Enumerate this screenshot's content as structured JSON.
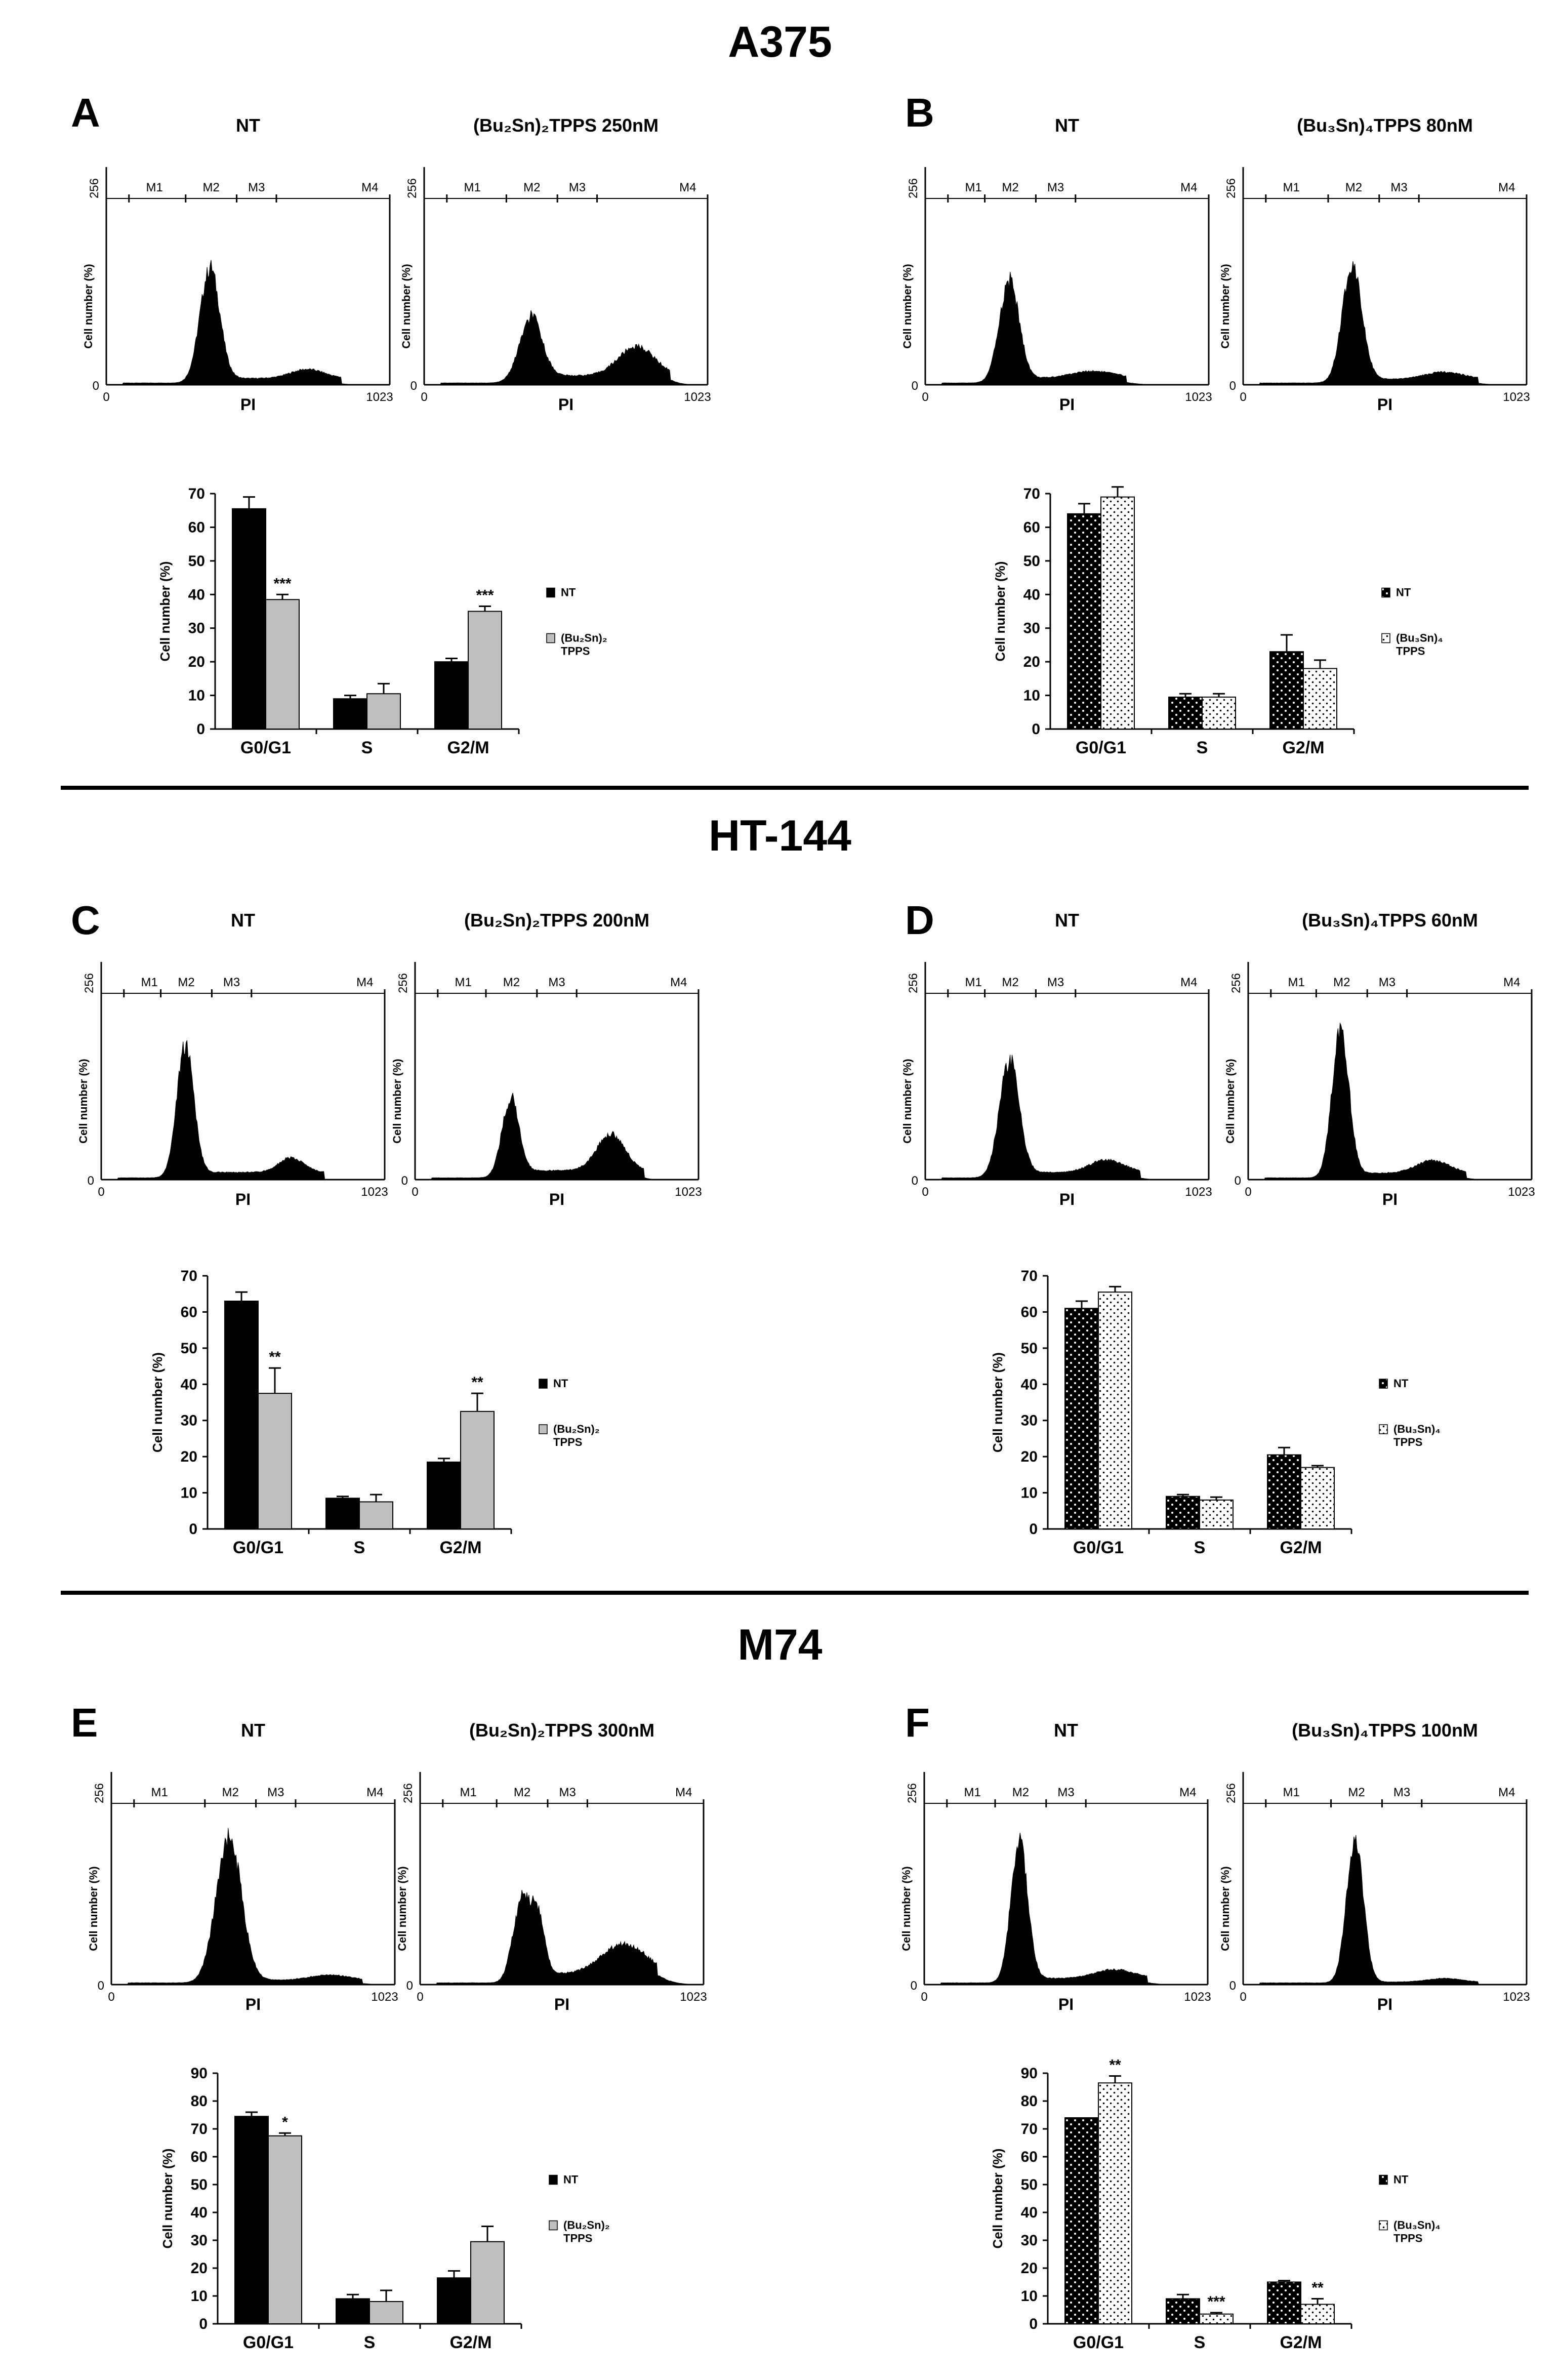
{
  "colors": {
    "nt_fill": "#000000",
    "treated_gray": "#bfbfbf",
    "pattern_bg_dark": "#000000",
    "pattern_bg_light": "#ffffff",
    "divider": "#000000"
  },
  "sections": [
    {
      "title": "A375"
    },
    {
      "title": "HT-144"
    },
    {
      "title": "M74"
    }
  ],
  "chart_data": [
    {
      "panel": "A",
      "type": "histogram",
      "title": "NT",
      "xlabel": "PI",
      "ylabel": "Cell number (%)",
      "xlim": [
        0,
        1023
      ],
      "y_max_label": "256",
      "x_ticks": [
        "0",
        "1023"
      ],
      "gates": [
        "M1",
        "M2",
        "M3",
        "M4"
      ],
      "curve": {
        "g1_pos": 0.37,
        "g1_h": 0.62,
        "g1_w": 0.035,
        "g2_pos": 0.72,
        "g2_h": 0.05,
        "g2_w": 0.06,
        "s_level": 0.035,
        "shoulder": 0
      }
    },
    {
      "panel": "A",
      "type": "histogram",
      "title": "(Bu₂Sn)₂TPPS 250nM",
      "xlabel": "PI",
      "ylabel": "Cell number (%)",
      "xlim": [
        0,
        1023
      ],
      "y_max_label": "256",
      "x_ticks": [
        "0",
        "1023"
      ],
      "gates": [
        "M1",
        "M2",
        "M3",
        "M4"
      ],
      "curve": {
        "g1_pos": 0.38,
        "g1_h": 0.34,
        "g1_w": 0.04,
        "g2_pos": 0.76,
        "g2_h": 0.16,
        "g2_w": 0.065,
        "s_level": 0.05,
        "shoulder": 0
      }
    },
    {
      "panel": "A",
      "type": "bar",
      "ylabel": "Cell number (%)",
      "ylim": [
        0,
        70
      ],
      "y_ticks": [
        0,
        10,
        20,
        30,
        40,
        50,
        60,
        70
      ],
      "categories": [
        "G0/G1",
        "S",
        "G2/M"
      ],
      "treated_style": "gray",
      "series": [
        {
          "name": "NT",
          "values": [
            65.5,
            9,
            20
          ],
          "errors": [
            3.5,
            1,
            1
          ]
        },
        {
          "name": "(Bu₂Sn)₂ TPPS",
          "values": [
            38.5,
            10.5,
            35
          ],
          "errors": [
            1.5,
            3,
            1.5
          ]
        }
      ],
      "annotations": [
        "***",
        "",
        "***"
      ]
    },
    {
      "panel": "B",
      "type": "histogram",
      "title": "NT",
      "xlabel": "PI",
      "ylabel": "Cell number (%)",
      "xlim": [
        0,
        1023
      ],
      "y_max_label": "256",
      "x_ticks": [
        "0",
        "1023"
      ],
      "gates": [
        "M1",
        "M2",
        "M3",
        "M4"
      ],
      "curve": {
        "g1_pos": 0.3,
        "g1_h": 0.55,
        "g1_w": 0.035,
        "g2_pos": 0.6,
        "g2_h": 0.04,
        "g2_w": 0.08,
        "s_level": 0.035,
        "shoulder": 0
      }
    },
    {
      "panel": "B",
      "type": "histogram",
      "title": "(Bu₃Sn)₄TPPS 80nM",
      "xlabel": "PI",
      "ylabel": "Cell number (%)",
      "xlim": [
        0,
        1023
      ],
      "y_max_label": "256",
      "x_ticks": [
        "0",
        "1023"
      ],
      "gates": [
        "M1",
        "M2",
        "M3",
        "M4"
      ],
      "curve": {
        "g1_pos": 0.39,
        "g1_h": 0.64,
        "g1_w": 0.035,
        "g2_pos": 0.72,
        "g2_h": 0.04,
        "g2_w": 0.07,
        "s_level": 0.03,
        "shoulder": 0
      }
    },
    {
      "panel": "B",
      "type": "bar",
      "ylabel": "Cell number (%)",
      "ylim": [
        0,
        70
      ],
      "y_ticks": [
        0,
        10,
        20,
        30,
        40,
        50,
        60,
        70
      ],
      "categories": [
        "G0/G1",
        "S",
        "G2/M"
      ],
      "treated_style": "dotted",
      "series": [
        {
          "name": "NT",
          "values": [
            64,
            9.5,
            23
          ],
          "errors": [
            3,
            1,
            5
          ]
        },
        {
          "name": "(Bu₃Sn)₄ TPPS",
          "values": [
            69,
            9.5,
            18
          ],
          "errors": [
            3,
            1,
            2.5
          ]
        }
      ],
      "annotations": [
        "",
        "",
        ""
      ]
    },
    {
      "panel": "C",
      "type": "histogram",
      "title": "NT",
      "xlabel": "PI",
      "ylabel": "Cell number (%)",
      "xlim": [
        0,
        1023
      ],
      "y_max_label": "256",
      "x_ticks": [
        "0",
        "1023"
      ],
      "gates": [
        "M1",
        "M2",
        "M3",
        "M4"
      ],
      "curve": {
        "g1_pos": 0.3,
        "g1_h": 0.72,
        "g1_w": 0.03,
        "g2_pos": 0.68,
        "g2_h": 0.08,
        "g2_w": 0.045,
        "s_level": 0.04,
        "shoulder": 0
      }
    },
    {
      "panel": "C",
      "type": "histogram",
      "title": "(Bu₂Sn)₂TPPS 200nM",
      "xlabel": "PI",
      "ylabel": "Cell number (%)",
      "xlim": [
        0,
        1023
      ],
      "y_max_label": "256",
      "x_ticks": [
        "0",
        "1023"
      ],
      "gates": [
        "M1",
        "M2",
        "M3",
        "M4"
      ],
      "curve": {
        "g1_pos": 0.34,
        "g1_h": 0.42,
        "g1_w": 0.03,
        "g2_pos": 0.7,
        "g2_h": 0.2,
        "g2_w": 0.05,
        "s_level": 0.05,
        "shoulder": 0
      }
    },
    {
      "panel": "C",
      "type": "bar",
      "ylabel": "Cell number (%)",
      "ylim": [
        0,
        70
      ],
      "y_ticks": [
        0,
        10,
        20,
        30,
        40,
        50,
        60,
        70
      ],
      "categories": [
        "G0/G1",
        "S",
        "G2/M"
      ],
      "treated_style": "gray",
      "series": [
        {
          "name": "NT",
          "values": [
            63,
            8.5,
            18.5
          ],
          "errors": [
            2.5,
            0.5,
            1
          ]
        },
        {
          "name": "(Bu₂Sn)₂ TPPS",
          "values": [
            37.5,
            7.5,
            32.5
          ],
          "errors": [
            7,
            2,
            5
          ]
        }
      ],
      "annotations": [
        "**",
        "",
        "**"
      ]
    },
    {
      "panel": "D",
      "type": "histogram",
      "title": "NT",
      "xlabel": "PI",
      "ylabel": "Cell number (%)",
      "xlim": [
        0,
        1023
      ],
      "y_max_label": "256",
      "x_ticks": [
        "0",
        "1023"
      ],
      "gates": [
        "M1",
        "M2",
        "M3",
        "M4"
      ],
      "curve": {
        "g1_pos": 0.3,
        "g1_h": 0.63,
        "g1_w": 0.035,
        "g2_pos": 0.65,
        "g2_h": 0.07,
        "g2_w": 0.06,
        "s_level": 0.04,
        "shoulder": 0
      }
    },
    {
      "panel": "D",
      "type": "histogram",
      "title": "(Bu₃Sn)₄TPPS 60nM",
      "xlabel": "PI",
      "ylabel": "Cell number (%)",
      "xlim": [
        0,
        1023
      ],
      "y_max_label": "256",
      "x_ticks": [
        "0",
        "1023"
      ],
      "gates": [
        "M1",
        "M2",
        "M3",
        "M4"
      ],
      "curve": {
        "g1_pos": 0.33,
        "g1_h": 0.8,
        "g1_w": 0.03,
        "g2_pos": 0.66,
        "g2_h": 0.07,
        "g2_w": 0.06,
        "s_level": 0.035,
        "shoulder": 0
      }
    },
    {
      "panel": "D",
      "type": "bar",
      "ylabel": "Cell number (%)",
      "ylim": [
        0,
        70
      ],
      "y_ticks": [
        0,
        10,
        20,
        30,
        40,
        50,
        60,
        70
      ],
      "categories": [
        "G0/G1",
        "S",
        "G2/M"
      ],
      "treated_style": "dotted",
      "series": [
        {
          "name": "NT",
          "values": [
            61,
            9,
            20.5
          ],
          "errors": [
            2,
            0.5,
            2
          ]
        },
        {
          "name": "(Bu₃Sn)₄ TPPS",
          "values": [
            65.5,
            8,
            17
          ],
          "errors": [
            1.5,
            0.8,
            0.5
          ]
        }
      ],
      "annotations": [
        "",
        "",
        ""
      ]
    },
    {
      "panel": "E",
      "type": "histogram",
      "title": "NT",
      "xlabel": "PI",
      "ylabel": "Cell number (%)",
      "xlim": [
        0,
        1023
      ],
      "y_max_label": "256",
      "x_ticks": [
        "0",
        "1023"
      ],
      "gates": [
        "M1",
        "M2",
        "M3",
        "M4"
      ],
      "curve": {
        "g1_pos": 0.42,
        "g1_h": 0.82,
        "g1_w": 0.045,
        "g2_pos": 0.78,
        "g2_h": 0.03,
        "g2_w": 0.07,
        "s_level": 0.025,
        "shoulder": 0
      }
    },
    {
      "panel": "E",
      "type": "histogram",
      "title": "(Bu₂Sn)₂TPPS 300nM",
      "xlabel": "PI",
      "ylabel": "Cell number (%)",
      "xlim": [
        0,
        1023
      ],
      "y_max_label": "256",
      "x_ticks": [
        "0",
        "1023"
      ],
      "gates": [
        "M1",
        "M2",
        "M3",
        "M4"
      ],
      "curve": {
        "g1_pos": 0.36,
        "g1_h": 0.43,
        "g1_w": 0.03,
        "g2_pos": 0.73,
        "g2_h": 0.17,
        "g2_w": 0.08,
        "s_level": 0.06,
        "shoulder": 0.33
      }
    },
    {
      "panel": "E",
      "type": "bar",
      "ylabel": "Cell number (%)",
      "ylim": [
        0,
        90
      ],
      "y_ticks": [
        0,
        10,
        20,
        30,
        40,
        50,
        60,
        70,
        80,
        90
      ],
      "categories": [
        "G0/G1",
        "S",
        "G2/M"
      ],
      "treated_style": "gray",
      "series": [
        {
          "name": "NT",
          "values": [
            74.5,
            9,
            16.5
          ],
          "errors": [
            1.5,
            1.5,
            2.5
          ]
        },
        {
          "name": "(Bu₂Sn)₂ TPPS",
          "values": [
            67.5,
            8,
            29.5
          ],
          "errors": [
            1,
            4,
            5.5
          ]
        }
      ],
      "annotations": [
        "*",
        "",
        ""
      ]
    },
    {
      "panel": "F",
      "type": "histogram",
      "title": "NT",
      "xlabel": "PI",
      "ylabel": "Cell number (%)",
      "xlim": [
        0,
        1023
      ],
      "y_max_label": "256",
      "x_ticks": [
        "0",
        "1023"
      ],
      "gates": [
        "M1",
        "M2",
        "M3",
        "M4"
      ],
      "curve": {
        "g1_pos": 0.34,
        "g1_h": 0.78,
        "g1_w": 0.03,
        "g2_pos": 0.68,
        "g2_h": 0.05,
        "g2_w": 0.07,
        "s_level": 0.035,
        "shoulder": 0
      }
    },
    {
      "panel": "F",
      "type": "histogram",
      "title": "(Bu₃Sn)₄TPPS 100nM",
      "xlabel": "PI",
      "ylabel": "Cell number (%)",
      "xlim": [
        0,
        1023
      ],
      "y_max_label": "256",
      "x_ticks": [
        "0",
        "1023"
      ],
      "gates": [
        "M1",
        "M2",
        "M3",
        "M4"
      ],
      "curve": {
        "g1_pos": 0.4,
        "g1_h": 0.8,
        "g1_w": 0.03,
        "g2_pos": 0.72,
        "g2_h": 0.02,
        "g2_w": 0.06,
        "s_level": 0.015,
        "shoulder": 0
      }
    },
    {
      "panel": "F",
      "type": "bar",
      "ylabel": "Cell number (%)",
      "ylim": [
        0,
        90
      ],
      "y_ticks": [
        0,
        10,
        20,
        30,
        40,
        50,
        60,
        70,
        80,
        90
      ],
      "categories": [
        "G0/G1",
        "S",
        "G2/M"
      ],
      "treated_style": "dotted",
      "series": [
        {
          "name": "NT",
          "values": [
            74,
            9,
            15
          ],
          "errors": [
            0,
            1.5,
            0.5
          ]
        },
        {
          "name": "(Bu₃Sn)₄ TPPS",
          "values": [
            86.5,
            3.5,
            7
          ],
          "errors": [
            2.5,
            0.5,
            2
          ]
        }
      ],
      "annotations": [
        "**",
        "***",
        "**"
      ]
    }
  ]
}
